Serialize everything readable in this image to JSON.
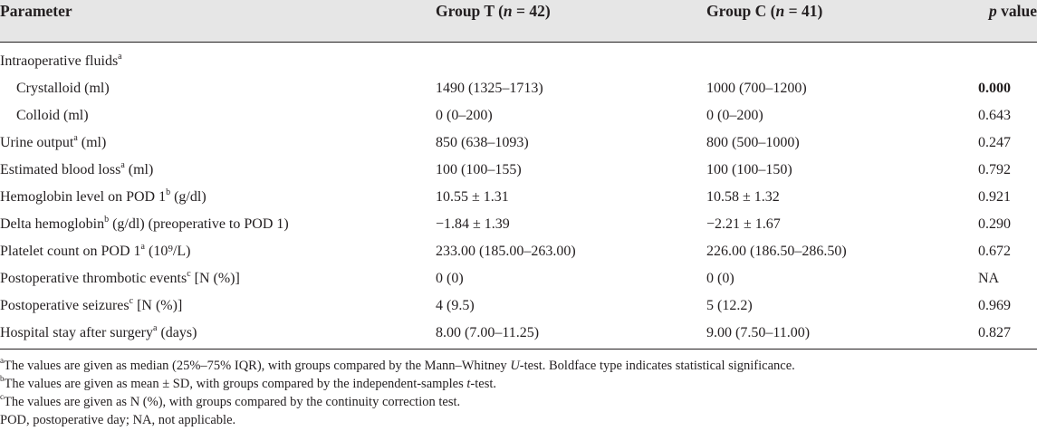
{
  "header": {
    "parameter": "Parameter",
    "group_t_label": "Group T (",
    "group_t_n": "n",
    "group_t_eq": " = 42)",
    "group_c_label": "Group C (",
    "group_c_n": "n",
    "group_c_eq": " = 41)",
    "p_label": "p",
    "p_value_label": " value"
  },
  "rows": [
    {
      "parameter": "Intraoperative fluids",
      "sup": "a",
      "suffix": "",
      "group_t": "",
      "group_c": "",
      "p": ""
    },
    {
      "parameter": "Crystalloid (ml)",
      "sup": "",
      "suffix": "",
      "group_t": "1490 (1325–1713)",
      "group_c": "1000 (700–1200)",
      "p": "0.000"
    },
    {
      "parameter": "Colloid (ml)",
      "sup": "",
      "suffix": "",
      "group_t": "0 (0–200)",
      "group_c": "0 (0–200)",
      "p": "0.643"
    },
    {
      "parameter": "Urine output",
      "sup": "a",
      "suffix": " (ml)",
      "group_t": "850 (638–1093)",
      "group_c": "800 (500–1000)",
      "p": "0.247"
    },
    {
      "parameter": "Estimated blood loss",
      "sup": "a",
      "suffix": " (ml)",
      "group_t": "100 (100–155)",
      "group_c": "100 (100–150)",
      "p": "0.792"
    },
    {
      "parameter": "Hemoglobin level on POD 1",
      "sup": "b",
      "suffix": " (g/dl)",
      "group_t": "10.55 ± 1.31",
      "group_c": "10.58 ± 1.32",
      "p": "0.921"
    },
    {
      "parameter": "Delta hemoglobin",
      "sup": "b",
      "suffix": " (g/dl) (preoperative to POD 1)",
      "group_t": "−1.84 ± 1.39",
      "group_c": "−2.21 ± 1.67",
      "p": "0.290"
    },
    {
      "parameter": "Platelet count on POD 1",
      "sup": "a",
      "suffix": " (10⁹/L)",
      "group_t": "233.00 (185.00–263.00)",
      "group_c": "226.00 (186.50–286.50)",
      "p": "0.672"
    },
    {
      "parameter": "Postoperative thrombotic events",
      "sup": "c",
      "suffix": " [N (%)]",
      "group_t": "0 (0)",
      "group_c": "0 (0)",
      "p": "NA"
    },
    {
      "parameter": "Postoperative seizures",
      "sup": "c",
      "suffix": " [N (%)]",
      "group_t": "4 (9.5)",
      "group_c": "5 (12.2)",
      "p": "0.969"
    },
    {
      "parameter": "Hospital stay after surgery",
      "sup": "a",
      "suffix": " (days)",
      "group_t": "8.00 (7.00–11.25)",
      "group_c": "9.00 (7.50–11.00)",
      "p": "0.827"
    }
  ],
  "notes": {
    "a_sup": "a",
    "a_text_1": "The values are given as median (25%–75% IQR), with groups compared by the Mann–Whitney ",
    "a_text_u": "U",
    "a_text_2": "-test. Boldface type indicates statistical significance.",
    "b_sup": "b",
    "b_text_1": "The values are given as mean ± SD, with groups compared by the independent-samples ",
    "b_text_t": "t",
    "b_text_2": "-test.",
    "c_sup": "c",
    "c_text": "The values are given as N (%), with groups compared by the continuity correction test.",
    "abbrev": "POD, postoperative day; NA, not applicable."
  }
}
